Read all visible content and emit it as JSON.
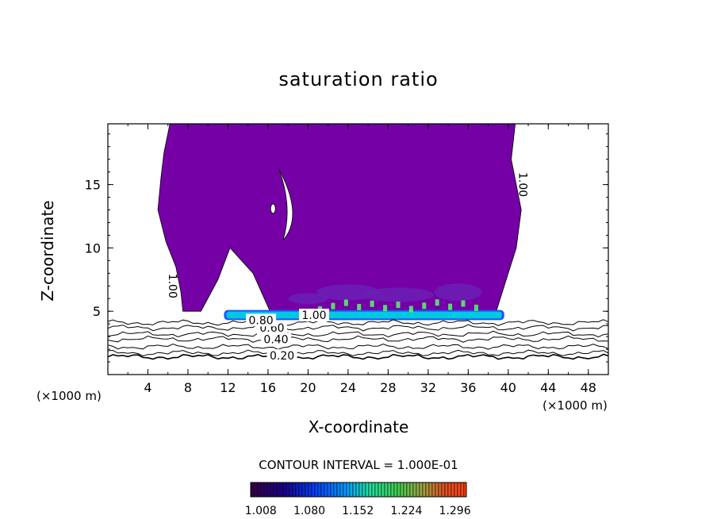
{
  "chart_data": {
    "type": "contour",
    "title": "saturation ratio",
    "xlabel": "X-coordinate",
    "ylabel": "Z-coordinate",
    "x_unit_left": "(×1000 m)",
    "x_unit_right": "(×1000 m)",
    "xlim": [
      0,
      50
    ],
    "ylim": [
      0,
      19.8
    ],
    "x_ticks": [
      4,
      8,
      12,
      16,
      20,
      24,
      28,
      32,
      36,
      40,
      44,
      48
    ],
    "x_tick_labels": [
      "4",
      "8",
      "12",
      "16",
      "20",
      "24",
      "28",
      "32",
      "36",
      "40",
      "44",
      "48"
    ],
    "y_ticks": [
      5,
      10,
      15
    ],
    "y_tick_labels": [
      "5",
      "10",
      "15"
    ],
    "contour_interval_text": "CONTOUR INTERVAL = 1.000E-01",
    "contour_labels": [
      {
        "text": "0.20",
        "x": 17.4,
        "y": 1.5
      },
      {
        "text": "0.40",
        "x": 16.8,
        "y": 2.8
      },
      {
        "text": "0.60",
        "x": 16.4,
        "y": 3.7
      },
      {
        "text": "0.80",
        "x": 15.3,
        "y": 4.3
      },
      {
        "text": "1.00",
        "x": 20.6,
        "y": 4.7
      },
      {
        "text": "1.00",
        "x": 6.5,
        "y": 7.0
      },
      {
        "text": "1.00",
        "x": 41.5,
        "y": 15.0
      }
    ],
    "supersaturated_region_outline": [
      [
        7.5,
        5.0
      ],
      [
        7.3,
        6.5
      ],
      [
        6.8,
        8.5
      ],
      [
        5.8,
        10.5
      ],
      [
        5.0,
        13.0
      ],
      [
        5.3,
        15.5
      ],
      [
        5.6,
        17.5
      ],
      [
        6.2,
        19.8
      ],
      [
        40.7,
        19.8
      ],
      [
        40.3,
        17.0
      ],
      [
        41.3,
        13.0
      ],
      [
        40.8,
        10.0
      ],
      [
        39.8,
        7.5
      ],
      [
        38.8,
        5.0
      ],
      [
        27.5,
        5.0
      ],
      [
        16.2,
        5.0
      ],
      [
        14.5,
        8.0
      ],
      [
        12.2,
        10.0
      ],
      [
        11.0,
        7.5
      ],
      [
        9.3,
        5.0
      ]
    ],
    "high_value_band": {
      "x": [
        11.6,
        39.6
      ],
      "y": [
        4.3,
        5.1
      ]
    },
    "colorbar": {
      "ticks": [
        1.008,
        1.08,
        1.152,
        1.224,
        1.296
      ],
      "tick_labels": [
        "1.008",
        "1.080",
        "1.152",
        "1.224",
        "1.296"
      ],
      "range": [
        1.0,
        1.32
      ]
    },
    "colors": {
      "supersaturated_fill": "#7400a6",
      "lifted_shading": "#6a20b4",
      "band_core": "#00c8e0",
      "band_edge": "#2050ff",
      "band_highlight": "#55ff66"
    }
  }
}
